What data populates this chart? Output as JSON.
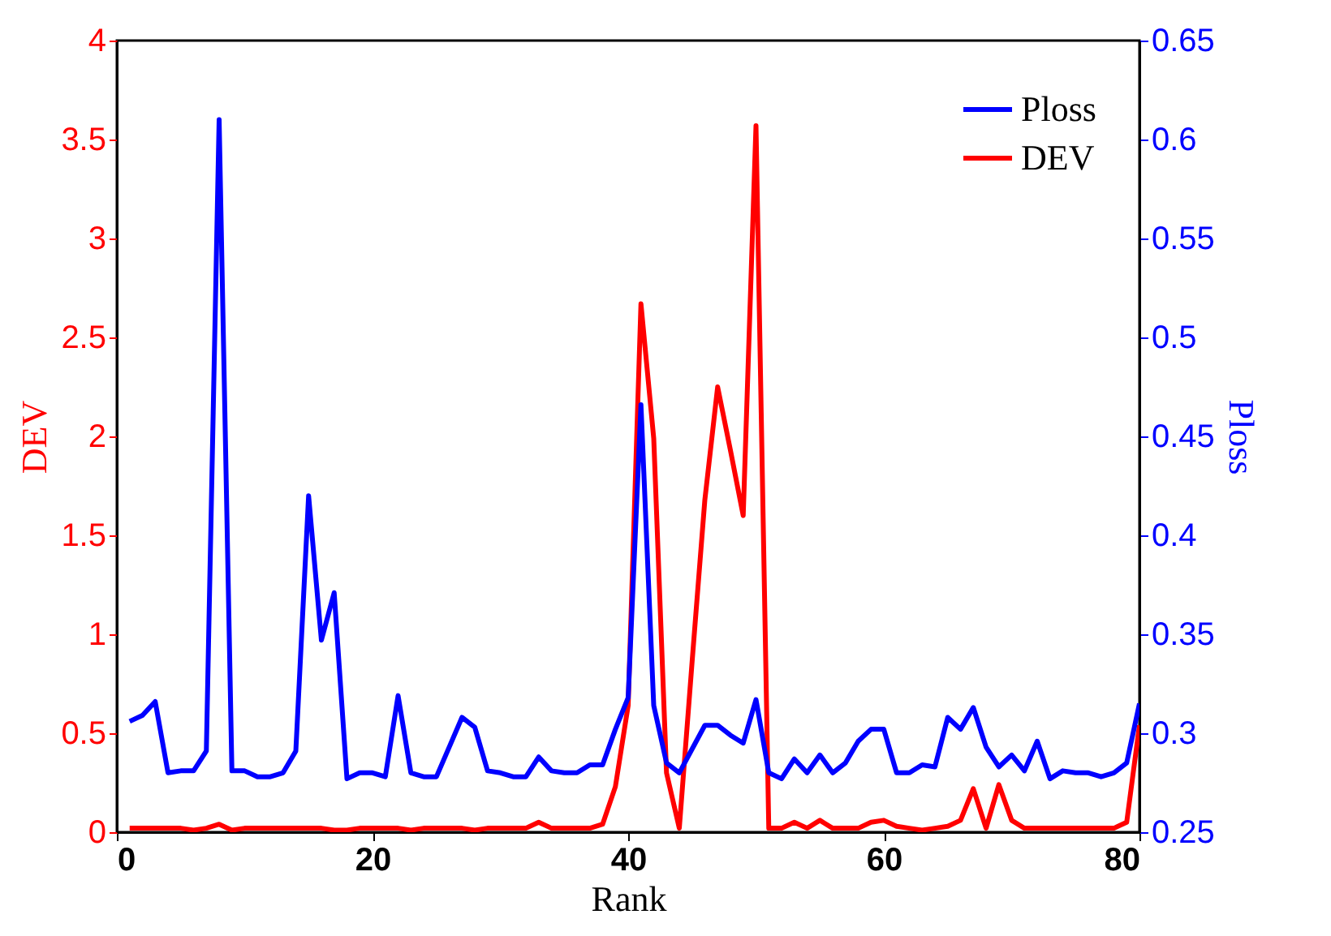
{
  "chart_data": {
    "type": "line",
    "xlabel": "Rank",
    "ylabel": "DEV",
    "y2label": "Ploss",
    "x": [
      1,
      2,
      3,
      4,
      5,
      6,
      7,
      8,
      9,
      10,
      11,
      12,
      13,
      14,
      15,
      16,
      17,
      18,
      19,
      20,
      21,
      22,
      23,
      24,
      25,
      26,
      27,
      28,
      29,
      30,
      31,
      32,
      33,
      34,
      35,
      36,
      37,
      38,
      39,
      40,
      41,
      42,
      43,
      44,
      45,
      46,
      47,
      48,
      49,
      50,
      51,
      52,
      53,
      54,
      55,
      56,
      57,
      58,
      59,
      60,
      61,
      62,
      63,
      64,
      65,
      66,
      67,
      68,
      69,
      70,
      71,
      72,
      73,
      74,
      75,
      76,
      77,
      78,
      79,
      80
    ],
    "series": [
      {
        "name": "Ploss",
        "color": "#0000ff",
        "axis": "y2",
        "values": [
          0.306,
          0.309,
          0.316,
          0.28,
          0.281,
          0.281,
          0.291,
          0.61,
          0.281,
          0.281,
          0.278,
          0.278,
          0.28,
          0.291,
          0.42,
          0.347,
          0.371,
          0.277,
          0.28,
          0.28,
          0.278,
          0.319,
          0.28,
          0.278,
          0.278,
          0.293,
          0.308,
          0.303,
          0.281,
          0.28,
          0.278,
          0.278,
          0.288,
          0.281,
          0.28,
          0.28,
          0.284,
          0.284,
          0.302,
          0.318,
          0.466,
          0.314,
          0.285,
          0.28,
          0.292,
          0.304,
          0.304,
          0.299,
          0.295,
          0.317,
          0.28,
          0.277,
          0.287,
          0.28,
          0.289,
          0.28,
          0.285,
          0.296,
          0.302,
          0.302,
          0.28,
          0.28,
          0.284,
          0.283,
          0.308,
          0.302,
          0.313,
          0.293,
          0.283,
          0.289,
          0.281,
          0.296,
          0.277,
          0.281,
          0.28,
          0.28,
          0.278,
          0.28,
          0.285,
          0.315
        ]
      },
      {
        "name": "DEV",
        "color": "#ff0000",
        "values": [
          0.02,
          0.02,
          0.02,
          0.02,
          0.02,
          0.01,
          0.02,
          0.04,
          0.01,
          0.02,
          0.02,
          0.02,
          0.02,
          0.02,
          0.02,
          0.02,
          0.01,
          0.01,
          0.02,
          0.02,
          0.02,
          0.02,
          0.01,
          0.02,
          0.02,
          0.02,
          0.02,
          0.01,
          0.02,
          0.02,
          0.02,
          0.02,
          0.05,
          0.02,
          0.02,
          0.02,
          0.02,
          0.04,
          0.23,
          0.64,
          2.67,
          1.99,
          0.3,
          0.02,
          0.86,
          1.68,
          2.25,
          1.93,
          1.6,
          3.57,
          0.02,
          0.02,
          0.05,
          0.02,
          0.06,
          0.02,
          0.02,
          0.02,
          0.05,
          0.06,
          0.03,
          0.02,
          0.01,
          0.02,
          0.03,
          0.06,
          0.22,
          0.02,
          0.24,
          0.06,
          0.02,
          0.02,
          0.02,
          0.02,
          0.02,
          0.02,
          0.02,
          0.02,
          0.05,
          0.54
        ]
      }
    ],
    "xlim": [
      0,
      80
    ],
    "xticks": [
      0,
      20,
      40,
      60,
      80
    ],
    "ylim": [
      0,
      4
    ],
    "yticks": [
      0,
      0.5,
      1,
      1.5,
      2,
      2.5,
      3,
      3.5,
      4
    ],
    "y2lim": [
      0.25,
      0.65
    ],
    "y2ticks": [
      0.25,
      0.3,
      0.35,
      0.4,
      0.45,
      0.5,
      0.55,
      0.6,
      0.65
    ],
    "legend": "top right",
    "grid": false
  }
}
